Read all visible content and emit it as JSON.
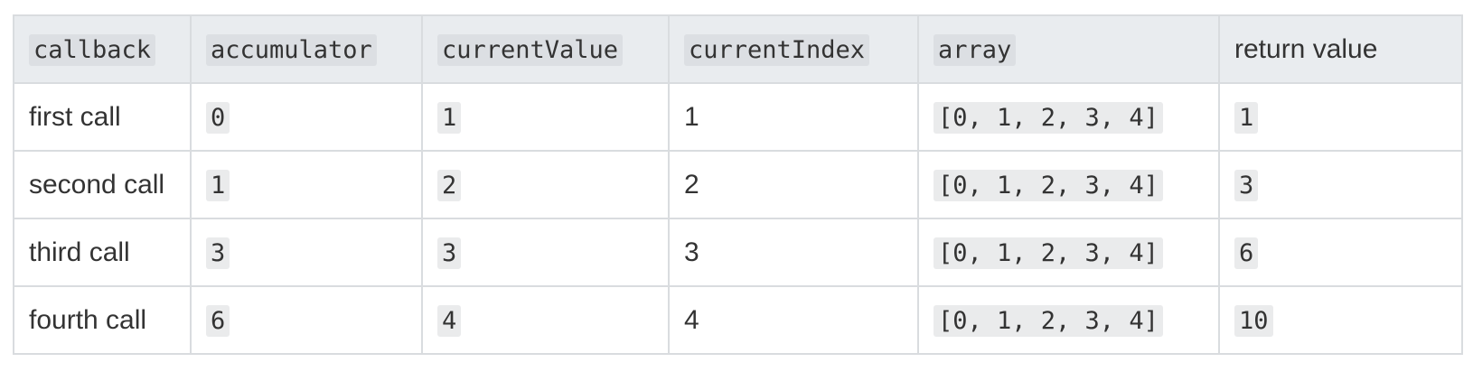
{
  "table": {
    "headers": [
      {
        "text": "callback",
        "code": true
      },
      {
        "text": "accumulator",
        "code": true
      },
      {
        "text": "currentValue",
        "code": true
      },
      {
        "text": "currentIndex",
        "code": true
      },
      {
        "text": "array",
        "code": true
      },
      {
        "text": "return value",
        "code": false
      }
    ],
    "rows": [
      {
        "label": "first call",
        "accumulator": "0",
        "currentValue": "1",
        "currentIndex": "1",
        "array": "[0, 1, 2, 3, 4]",
        "return_value": "1"
      },
      {
        "label": "second call",
        "accumulator": "1",
        "currentValue": "2",
        "currentIndex": "2",
        "array": "[0, 1, 2, 3, 4]",
        "return_value": "3"
      },
      {
        "label": "third call",
        "accumulator": "3",
        "currentValue": "3",
        "currentIndex": "3",
        "array": "[0, 1, 2, 3, 4]",
        "return_value": "6"
      },
      {
        "label": "fourth call",
        "accumulator": "6",
        "currentValue": "4",
        "currentIndex": "4",
        "array": "[0, 1, 2, 3, 4]",
        "return_value": "10"
      }
    ]
  }
}
